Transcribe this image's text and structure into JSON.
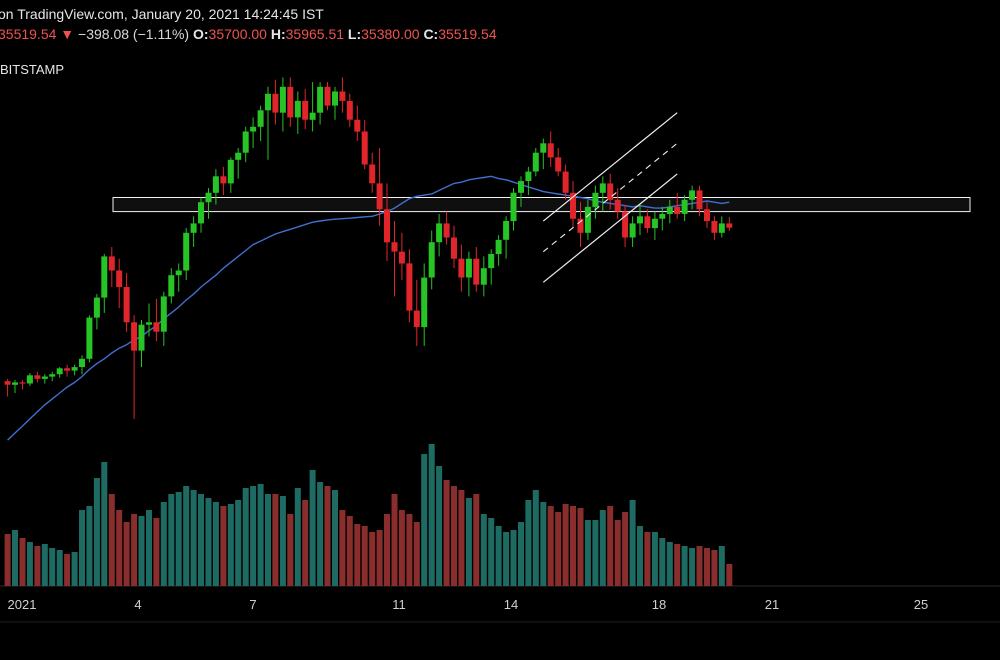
{
  "header": {
    "source": "on TradingView.com, January 20, 2021 14:24:45 IST",
    "last": "35519.54",
    "change": "−398.08 (−1.11%)",
    "open_label": "O:",
    "open": "35700.00",
    "high_label": "H:",
    "high": "35965.51",
    "low_label": "L:",
    "low": "35380.00",
    "close_label": "C:",
    "close": "35519.54"
  },
  "symbol": "BITSTAMP",
  "colors": {
    "up": "#26c425",
    "down": "#e0262b",
    "ma": "#3f6fd0",
    "vol_up": "#1e6b63",
    "vol_down": "#8a2d2d",
    "zone": "#f2f2f2",
    "channel": "#f0f0f0"
  },
  "chart_data": {
    "type": "candlestick",
    "x_ticks": [
      "2021",
      "4",
      "7",
      "11",
      "14",
      "18",
      "21",
      "25"
    ],
    "candles": [
      [
        29000,
        29100,
        28350,
        28850
      ],
      [
        28850,
        29050,
        28500,
        28950
      ],
      [
        28950,
        29050,
        28650,
        28900
      ],
      [
        28900,
        29350,
        28800,
        29250
      ],
      [
        29250,
        29400,
        28950,
        29100
      ],
      [
        29100,
        29300,
        28900,
        29200
      ],
      [
        29200,
        29400,
        29000,
        29300
      ],
      [
        29300,
        29600,
        29150,
        29550
      ],
      [
        29550,
        29700,
        29200,
        29450
      ],
      [
        29450,
        29700,
        29250,
        29600
      ],
      [
        29600,
        30100,
        29300,
        29950
      ],
      [
        29950,
        31800,
        29800,
        31700
      ],
      [
        31700,
        32700,
        31200,
        32550
      ],
      [
        32550,
        34400,
        31900,
        34300
      ],
      [
        34300,
        34700,
        33000,
        33700
      ],
      [
        33700,
        34200,
        32100,
        33000
      ],
      [
        33000,
        33600,
        31100,
        31500
      ],
      [
        31500,
        31800,
        27400,
        30300
      ],
      [
        30300,
        31600,
        29600,
        31400
      ],
      [
        31400,
        32300,
        30900,
        31500
      ],
      [
        31500,
        32500,
        30700,
        31100
      ],
      [
        31100,
        32800,
        30500,
        32600
      ],
      [
        32600,
        33800,
        32300,
        33500
      ],
      [
        33500,
        34000,
        32800,
        33700
      ],
      [
        33700,
        35500,
        33300,
        35300
      ],
      [
        35300,
        36000,
        34700,
        35700
      ],
      [
        35700,
        36800,
        35300,
        36600
      ],
      [
        36600,
        37200,
        35900,
        37000
      ],
      [
        37000,
        38000,
        36500,
        37700
      ],
      [
        37700,
        38100,
        36900,
        37400
      ],
      [
        37400,
        38500,
        37000,
        38400
      ],
      [
        38400,
        38900,
        37600,
        38700
      ],
      [
        38700,
        39800,
        38300,
        39600
      ],
      [
        39600,
        40200,
        38900,
        39800
      ],
      [
        39800,
        40700,
        39200,
        40500
      ],
      [
        40500,
        41500,
        38400,
        41200
      ],
      [
        41200,
        41800,
        39900,
        40400
      ],
      [
        40400,
        41900,
        39600,
        41500
      ],
      [
        41500,
        41900,
        39800,
        40200
      ],
      [
        40200,
        41300,
        39500,
        40900
      ],
      [
        40900,
        41400,
        39700,
        40100
      ],
      [
        40100,
        41700,
        39600,
        40400
      ],
      [
        40400,
        41700,
        39900,
        41500
      ],
      [
        41500,
        41700,
        40500,
        40700
      ],
      [
        40700,
        41500,
        40100,
        41300
      ],
      [
        41300,
        41900,
        40400,
        40900
      ],
      [
        40900,
        41200,
        39800,
        40100
      ],
      [
        40100,
        40700,
        39200,
        39600
      ],
      [
        39600,
        40100,
        38000,
        38200
      ],
      [
        38200,
        38700,
        37000,
        37400
      ],
      [
        37400,
        38900,
        35600,
        36300
      ],
      [
        36300,
        37400,
        34100,
        34900
      ],
      [
        34900,
        35800,
        32600,
        34500
      ],
      [
        34500,
        35300,
        33300,
        34000
      ],
      [
        34000,
        34600,
        31500,
        32000
      ],
      [
        32000,
        33300,
        30500,
        31300
      ],
      [
        31300,
        34000,
        30500,
        33400
      ],
      [
        33400,
        35400,
        32900,
        34900
      ],
      [
        34900,
        36100,
        34300,
        35700
      ],
      [
        35700,
        36200,
        34800,
        35100
      ],
      [
        35100,
        35600,
        33800,
        34200
      ],
      [
        34200,
        34800,
        32800,
        33400
      ],
      [
        33400,
        34500,
        32600,
        34200
      ],
      [
        34200,
        34700,
        32800,
        33100
      ],
      [
        33100,
        34300,
        32600,
        33800
      ],
      [
        33800,
        34600,
        33100,
        34400
      ],
      [
        34400,
        35200,
        33900,
        35000
      ],
      [
        35000,
        36000,
        34200,
        35800
      ],
      [
        35800,
        37200,
        35400,
        37000
      ],
      [
        37000,
        37700,
        36400,
        37500
      ],
      [
        37500,
        38100,
        36900,
        37900
      ],
      [
        37900,
        38900,
        37700,
        38700
      ],
      [
        38700,
        39300,
        38000,
        39100
      ],
      [
        39100,
        39600,
        38100,
        38500
      ],
      [
        38500,
        38900,
        37700,
        37900
      ],
      [
        37900,
        38200,
        36700,
        37000
      ],
      [
        37000,
        37500,
        35500,
        35900
      ],
      [
        35900,
        36600,
        34700,
        35300
      ],
      [
        35300,
        36700,
        35000,
        36400
      ],
      [
        36400,
        37300,
        35900,
        37000
      ],
      [
        37000,
        37700,
        36200,
        37400
      ],
      [
        37400,
        37800,
        36300,
        36700
      ],
      [
        36700,
        37200,
        35900,
        36200
      ],
      [
        36200,
        36500,
        34700,
        35100
      ],
      [
        35100,
        36000,
        34700,
        35700
      ],
      [
        35700,
        36500,
        35200,
        36000
      ],
      [
        36000,
        36300,
        35300,
        35500
      ],
      [
        35500,
        36200,
        35000,
        35900
      ],
      [
        35900,
        36400,
        35400,
        36100
      ],
      [
        36100,
        36700,
        35700,
        36400
      ],
      [
        36400,
        37000,
        35900,
        36100
      ],
      [
        36100,
        36900,
        35800,
        36700
      ],
      [
        36700,
        37300,
        36300,
        37100
      ],
      [
        37100,
        37300,
        36000,
        36300
      ],
      [
        36300,
        36600,
        35500,
        35800
      ],
      [
        35800,
        36000,
        35000,
        35300
      ],
      [
        35300,
        36000,
        35100,
        35700
      ],
      [
        35700,
        35965.51,
        35380,
        35519.54
      ]
    ],
    "ma_y": [
      26500,
      26800,
      27100,
      27400,
      27700,
      28000,
      28250,
      28500,
      28750,
      28950,
      29200,
      29500,
      29750,
      29950,
      30200,
      30400,
      30550,
      30750,
      30900,
      31150,
      31350,
      31650,
      31900,
      32150,
      32450,
      32700,
      33000,
      33250,
      33500,
      33800,
      34050,
      34300,
      34550,
      34800,
      34950,
      35100,
      35250,
      35350,
      35450,
      35550,
      35650,
      35750,
      35800,
      35850,
      35880,
      35900,
      35920,
      35950,
      35980,
      36000,
      36100,
      36200,
      36350,
      36550,
      36750,
      36850,
      36900,
      36950,
      37100,
      37250,
      37400,
      37450,
      37550,
      37600,
      37650,
      37700,
      37600,
      37550,
      37450,
      37350,
      37250,
      37150,
      37050,
      37000,
      36950,
      36900,
      36850,
      36800,
      36750,
      36650,
      36600,
      36550,
      36500,
      36450,
      36400,
      36450,
      36400,
      36350,
      36350,
      36400,
      36450,
      36500,
      36550,
      36600,
      36650,
      36600,
      36550,
      36600
    ],
    "volumes": [
      130,
      140,
      120,
      110,
      100,
      105,
      95,
      90,
      80,
      85,
      190,
      200,
      270,
      310,
      230,
      190,
      160,
      180,
      175,
      190,
      170,
      210,
      230,
      235,
      250,
      240,
      230,
      220,
      210,
      200,
      205,
      215,
      245,
      250,
      255,
      230,
      230,
      225,
      180,
      245,
      215,
      290,
      260,
      250,
      240,
      190,
      175,
      155,
      150,
      135,
      140,
      180,
      230,
      190,
      180,
      160,
      330,
      355,
      300,
      265,
      250,
      240,
      220,
      230,
      180,
      170,
      150,
      135,
      140,
      160,
      215,
      240,
      210,
      200,
      185,
      205,
      200,
      195,
      165,
      165,
      190,
      200,
      165,
      185,
      215,
      150,
      135,
      135,
      120,
      110,
      105,
      100,
      95,
      100,
      95,
      90,
      100,
      55
    ],
    "zone": {
      "y_top": 36800,
      "y_bottom": 36200
    },
    "channel": {
      "x0": 72,
      "y_lower0": 33200,
      "y_upper0": 35800,
      "x1": 90,
      "y_lower1": 37800,
      "y_upper1": 40400
    }
  }
}
